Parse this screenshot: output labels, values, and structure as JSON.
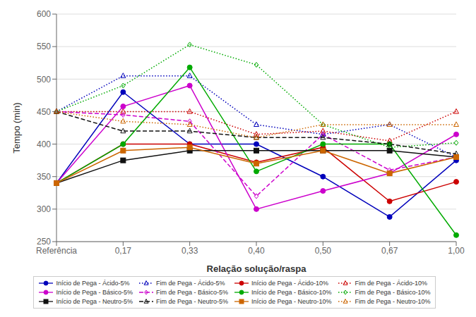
{
  "chart_data": {
    "type": "line",
    "x_label": "Relação solução/raspa",
    "y_label": "Tempo (min)",
    "categories": [
      "Referência",
      "0,17",
      "0,33",
      "0,40",
      "0,50",
      "0,67",
      "1,00"
    ],
    "ylim": [
      250,
      600
    ],
    "yticks": [
      250,
      300,
      350,
      400,
      450,
      500,
      550,
      600
    ],
    "grid": "y",
    "legend": "bottom",
    "series": [
      {
        "name": "Início de Pega - Ácido-5%",
        "color": "#0000BB",
        "line_style": "solid",
        "marker": "circle",
        "values": [
          340,
          480,
          400,
          400,
          350,
          288,
          375
        ]
      },
      {
        "name": "Fim de Pega - Ácido-5%",
        "color": "#0000BB",
        "line_style": "dotted",
        "marker": "open-triangle",
        "values": [
          450,
          505,
          505,
          430,
          415,
          430,
          380
        ]
      },
      {
        "name": "Início de Pega - Ácido-10%",
        "color": "#CC0000",
        "line_style": "solid",
        "marker": "circle",
        "values": [
          340,
          400,
          400,
          372,
          395,
          312,
          342
        ]
      },
      {
        "name": "Fim de Pega - Ácido-10%",
        "color": "#CC0000",
        "line_style": "dotted",
        "marker": "open-triangle",
        "values": [
          450,
          450,
          450,
          415,
          420,
          405,
          450
        ]
      },
      {
        "name": "Início de Pega - Básico-5%",
        "color": "#CC00CC",
        "line_style": "solid",
        "marker": "circle",
        "values": [
          340,
          458,
          490,
          300,
          328,
          355,
          415
        ]
      },
      {
        "name": "Fim de Pega - Básico-5%",
        "color": "#CC00CC",
        "line_style": "dashed",
        "marker": "open-diamond",
        "values": [
          450,
          445,
          435,
          320,
          415,
          360,
          380
        ]
      },
      {
        "name": "Início de Pega - Básico-10%",
        "color": "#00AA00",
        "line_style": "solid",
        "marker": "circle",
        "values": [
          340,
          400,
          518,
          358,
          400,
          400,
          260
        ]
      },
      {
        "name": "Fim de Pega - Básico-10%",
        "color": "#00AA00",
        "line_style": "dotted",
        "marker": "open-diamond",
        "values": [
          450,
          490,
          553,
          522,
          430,
          395,
          402
        ]
      },
      {
        "name": "Início de Pega - Neutro-5%",
        "color": "#111111",
        "line_style": "solid",
        "marker": "square",
        "values": [
          340,
          375,
          390,
          390,
          390,
          390,
          380
        ]
      },
      {
        "name": "Fim de Pega - Neutro-5%",
        "color": "#111111",
        "line_style": "dashed",
        "marker": "open-triangle",
        "values": [
          450,
          420,
          420,
          410,
          410,
          400,
          385
        ]
      },
      {
        "name": "Início de Pega - Neutro-10%",
        "color": "#CC6600",
        "line_style": "solid",
        "marker": "square",
        "values": [
          340,
          390,
          395,
          370,
          390,
          355,
          380
        ]
      },
      {
        "name": "Fim de Pega - Neutro-10%",
        "color": "#CC6600",
        "line_style": "dotted",
        "marker": "open-triangle",
        "values": [
          450,
          435,
          430,
          410,
          430,
          430,
          430
        ]
      }
    ]
  }
}
